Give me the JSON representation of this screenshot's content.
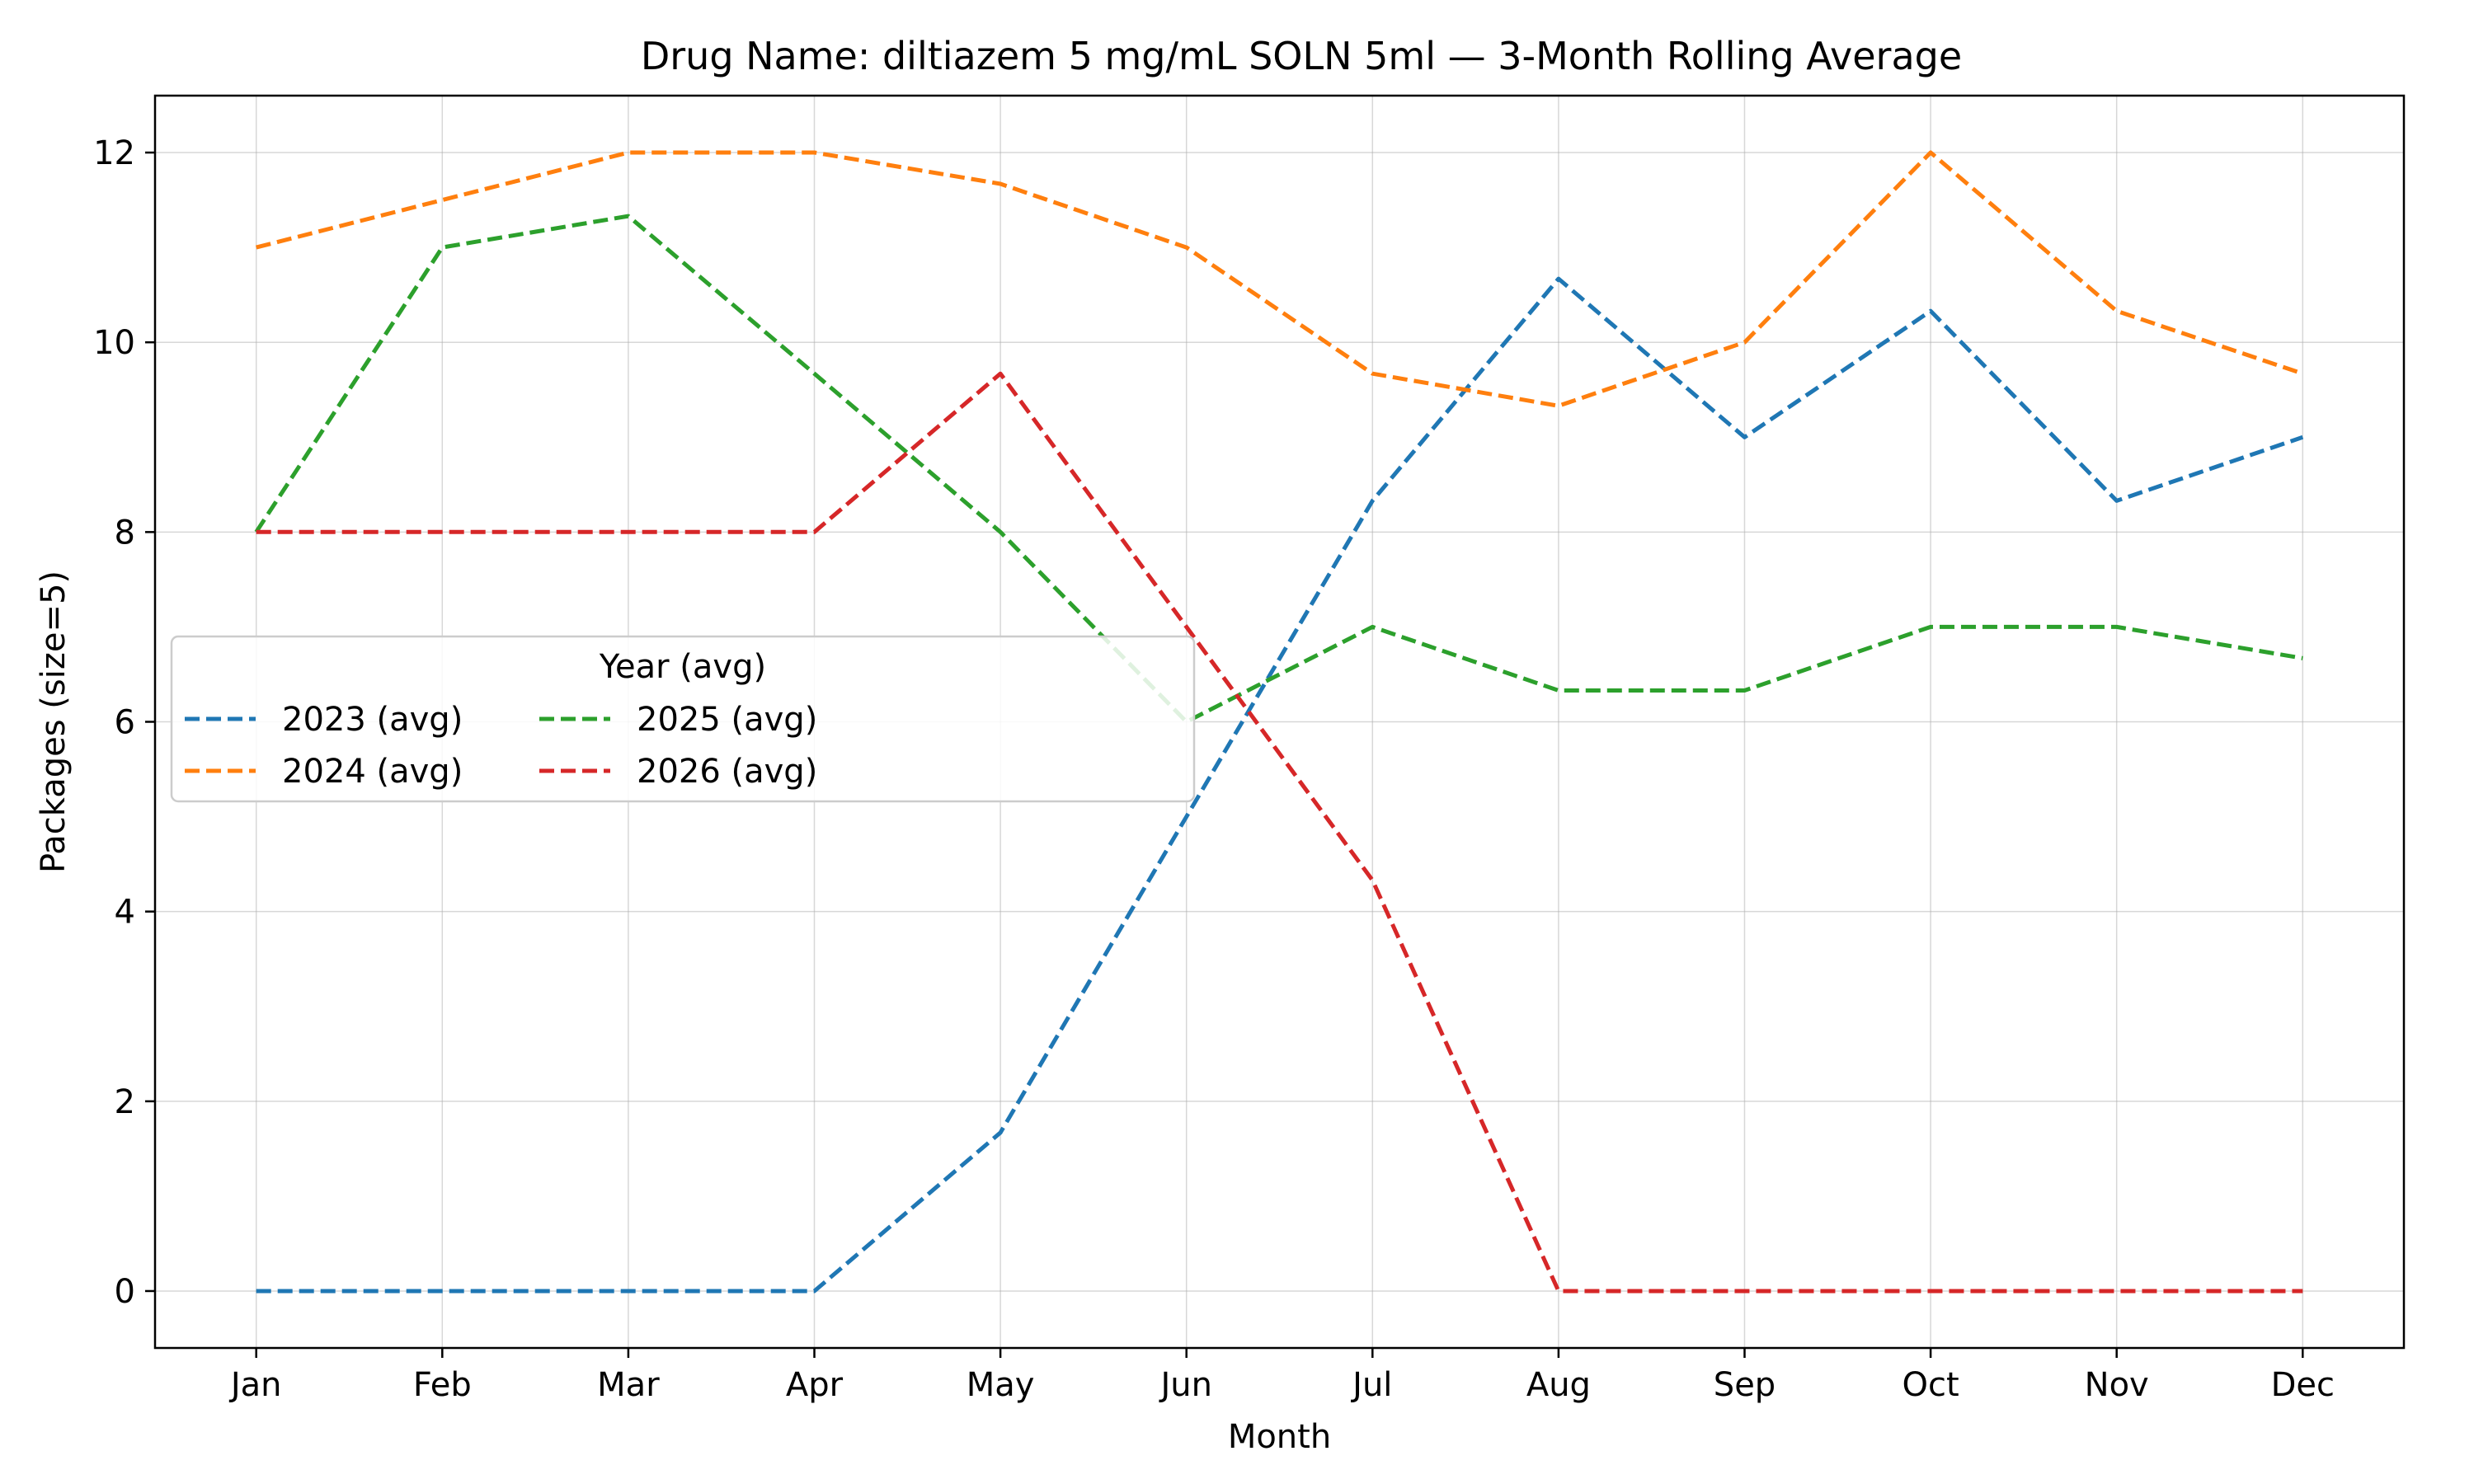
{
  "chart_data": {
    "type": "line",
    "title": "Drug Name: diltiazem 5 mg/mL SOLN 5ml — 3-Month Rolling Average",
    "xlabel": "Month",
    "ylabel": "Packages (size=5)",
    "categories": [
      "Jan",
      "Feb",
      "Mar",
      "Apr",
      "May",
      "Jun",
      "Jul",
      "Aug",
      "Sep",
      "Oct",
      "Nov",
      "Dec"
    ],
    "ylim": [
      -0.6,
      12.6
    ],
    "yticks": [
      0,
      2,
      4,
      6,
      8,
      10,
      12
    ],
    "grid": true,
    "legend": {
      "title": "Year (avg)",
      "placement": "center-left",
      "columns": 3
    },
    "series": [
      {
        "name": "2023 (avg)",
        "color": "#1f77b4",
        "values": [
          0,
          0,
          0,
          0,
          1.67,
          5.0,
          8.33,
          10.67,
          9.0,
          10.33,
          8.33,
          9.0
        ]
      },
      {
        "name": "2024 (avg)",
        "color": "#ff7f0e",
        "values": [
          11.0,
          11.5,
          12.0,
          12.0,
          11.67,
          11.0,
          9.67,
          9.33,
          10.0,
          12.0,
          10.33,
          9.67
        ]
      },
      {
        "name": "2025 (avg)",
        "color": "#2ca02c",
        "values": [
          8.0,
          11.0,
          11.33,
          9.67,
          8.0,
          6.0,
          7.0,
          6.33,
          6.33,
          7.0,
          7.0,
          6.67
        ]
      },
      {
        "name": "2026 (avg)",
        "color": "#d62728",
        "values": [
          8.0,
          8.0,
          8.0,
          8.0,
          9.67,
          7.0,
          4.33,
          0,
          0,
          0,
          0,
          0
        ]
      }
    ]
  }
}
